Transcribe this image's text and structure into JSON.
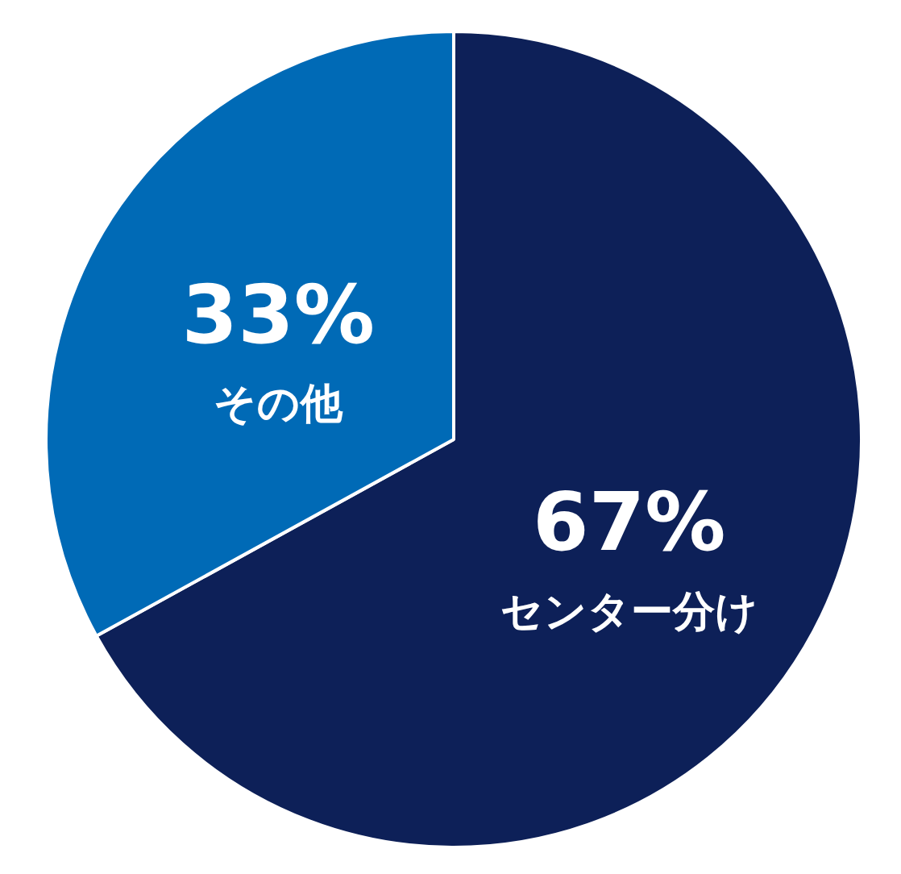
{
  "chart_data": {
    "type": "pie",
    "categories": [
      "センター分け",
      "その他"
    ],
    "values": [
      67,
      33
    ],
    "colors": [
      "#0d2058",
      "#006ab6"
    ],
    "value_labels": [
      "67%",
      "33%"
    ]
  }
}
